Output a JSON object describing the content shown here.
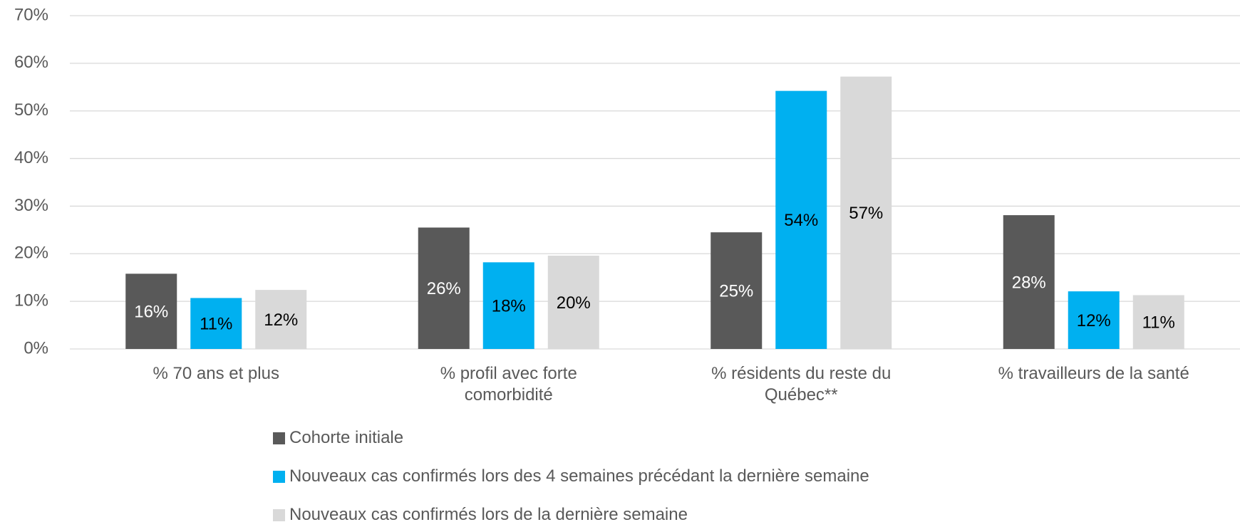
{
  "chart_data": {
    "type": "bar",
    "categories": [
      "% 70 ans et plus",
      "% profil avec forte comorbidité",
      "% résidents du reste du Québec**",
      "% travailleurs de la santé"
    ],
    "series": [
      {
        "name": "Cohorte initiale",
        "color": "#595959",
        "label_color": "#ffffff",
        "values": [
          15.8,
          25.5,
          24.5,
          28.1
        ],
        "value_labels": [
          "16%",
          "26%",
          "25%",
          "28%"
        ]
      },
      {
        "name": "Nouveaux cas confirmés lors des 4 semaines précédant la dernière semaine",
        "color": "#00b0f0",
        "label_color": "#000000",
        "values": [
          10.7,
          18.2,
          54.2,
          12.1
        ],
        "value_labels": [
          "11%",
          "18%",
          "54%",
          "12%"
        ]
      },
      {
        "name": "Nouveaux cas confirmés lors de la dernière semaine",
        "color": "#d9d9d9",
        "label_color": "#000000",
        "values": [
          12.4,
          19.6,
          57.2,
          11.3
        ],
        "value_labels": [
          "12%",
          "20%",
          "57%",
          "11%"
        ]
      }
    ],
    "ylim": [
      0,
      70
    ],
    "yticks": [
      {
        "value": 0,
        "label": "0%"
      },
      {
        "value": 10,
        "label": "10%"
      },
      {
        "value": 20,
        "label": "20%"
      },
      {
        "value": 30,
        "label": "30%"
      },
      {
        "value": 40,
        "label": "40%"
      },
      {
        "value": 50,
        "label": "50%"
      },
      {
        "value": 60,
        "label": "60%"
      },
      {
        "value": 70,
        "label": "70%"
      }
    ],
    "grid": true,
    "legend": "bottom"
  }
}
